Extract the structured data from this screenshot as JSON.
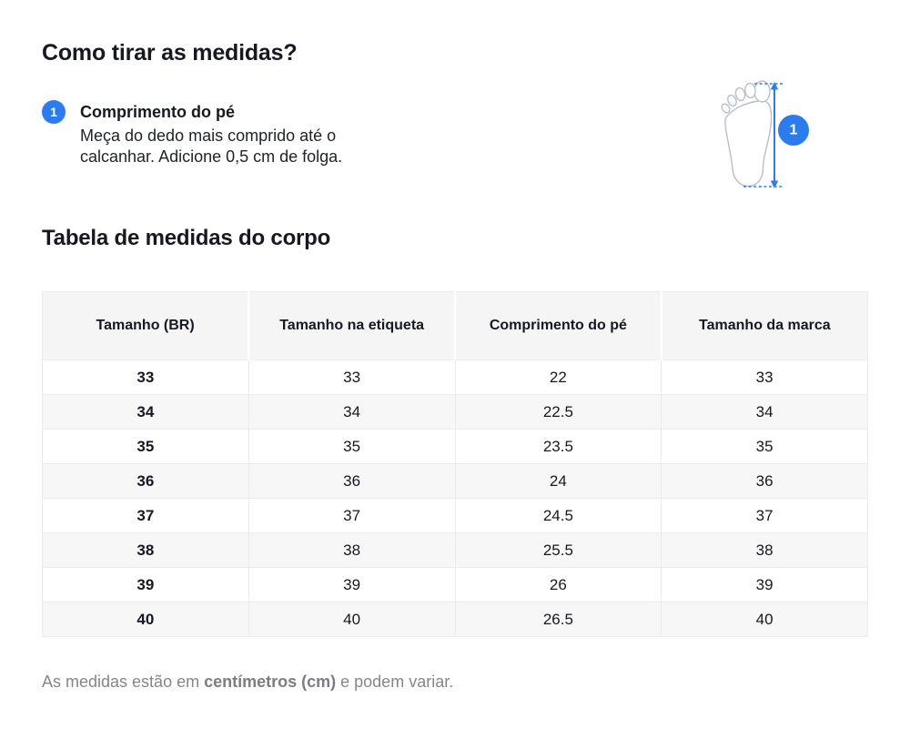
{
  "header": {
    "title": "Como tirar as medidas?"
  },
  "instruction": {
    "badge": "1",
    "title": "Comprimento do pé",
    "description_line1": "Meça do dedo mais comprido até o",
    "description_line2": "calcanhar. Adicione 0,5 cm de folga."
  },
  "illustration": {
    "badge": "1",
    "subject": "foot-length-measurement"
  },
  "table_section": {
    "title": "Tabela de medidas do corpo"
  },
  "table": {
    "headers": [
      "Tamanho (BR)",
      "Tamanho na etiqueta",
      "Comprimento do pé",
      "Tamanho da marca"
    ],
    "rows": [
      [
        "33",
        "33",
        "22",
        "33"
      ],
      [
        "34",
        "34",
        "22.5",
        "34"
      ],
      [
        "35",
        "35",
        "23.5",
        "35"
      ],
      [
        "36",
        "36",
        "24",
        "36"
      ],
      [
        "37",
        "37",
        "24.5",
        "37"
      ],
      [
        "38",
        "38",
        "25.5",
        "38"
      ],
      [
        "39",
        "39",
        "26",
        "39"
      ],
      [
        "40",
        "40",
        "26.5",
        "40"
      ]
    ]
  },
  "footnote": {
    "prefix": "As medidas estão em ",
    "bold": "centímetros (cm)",
    "suffix": " e podem variar."
  },
  "colors": {
    "accent_blue": "#2b7cef",
    "table_header_bg": "#f5f5f6",
    "table_alt_row_bg": "#f7f7f8",
    "table_border": "#ececee",
    "text_primary": "#161823",
    "text_muted": "#85858c",
    "foot_outline": "#b8bfcb"
  }
}
